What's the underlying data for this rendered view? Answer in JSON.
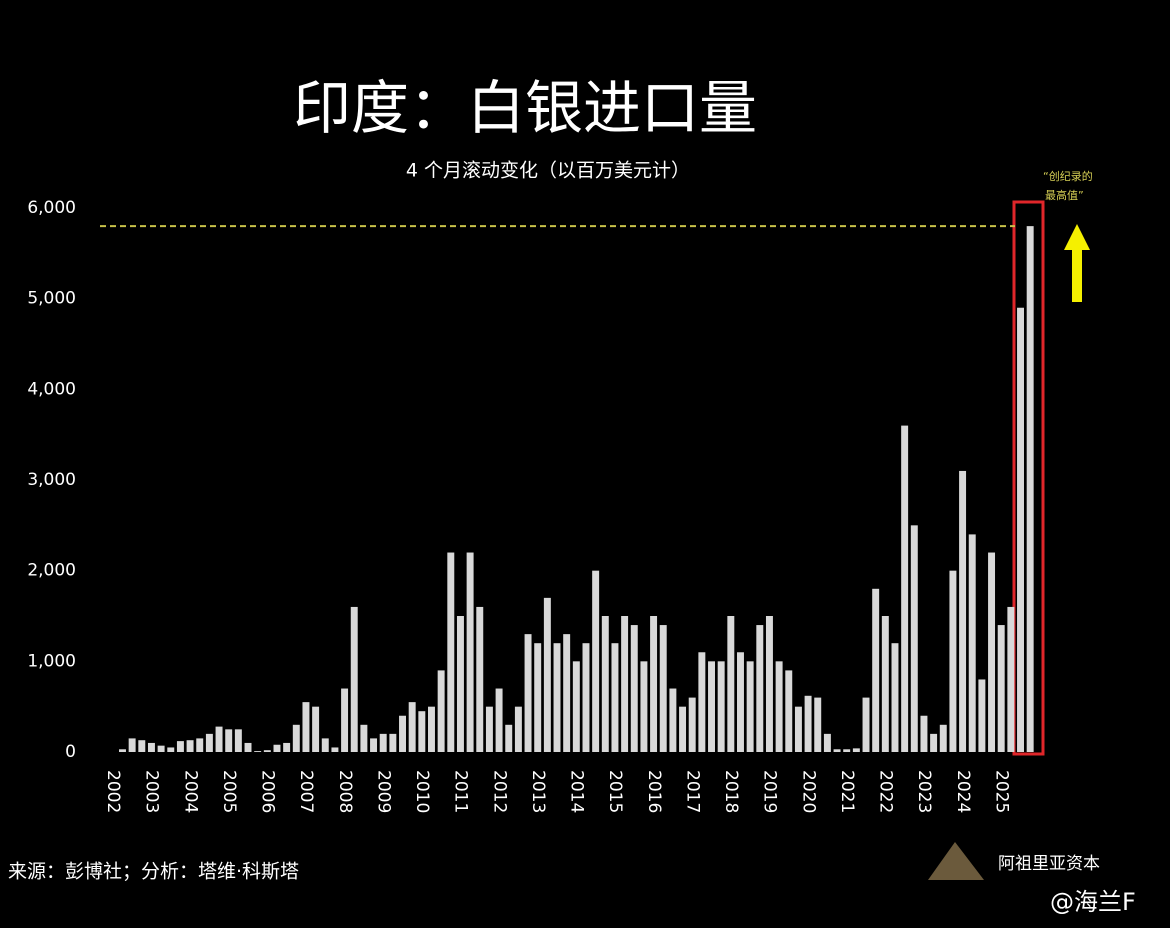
{
  "chart_data": {
    "type": "bar",
    "title": "印度：白银进口量",
    "subtitle": "4 个月滚动变化（以百万美元计）",
    "annotation": [
      "“创纪录的",
      "最高值”"
    ],
    "source": "来源：彭博社；分析：塔维·科斯塔",
    "brand": "阿祖里亚资本",
    "watermark": "@海兰F",
    "color": "#d9d9d9",
    "reference_line": 5800,
    "reference_color": "#c8c24a",
    "categories": [
      "2002",
      null,
      null,
      null,
      "2003",
      null,
      null,
      null,
      "2004",
      null,
      null,
      null,
      "2005",
      null,
      null,
      null,
      "2006",
      null,
      null,
      null,
      "2007",
      null,
      null,
      null,
      "2008",
      null,
      null,
      null,
      "2009",
      null,
      null,
      null,
      "2010",
      null,
      null,
      null,
      "2011",
      null,
      null,
      null,
      "2012",
      null,
      null,
      null,
      "2013",
      null,
      null,
      null,
      "2014",
      null,
      null,
      null,
      "2015",
      null,
      null,
      null,
      "2016",
      null,
      null,
      null,
      "2017",
      null,
      null,
      null,
      "2018",
      null,
      null,
      null,
      "2019",
      null,
      null,
      null,
      "2020",
      null,
      null,
      null,
      "2021",
      null,
      null,
      null,
      "2022",
      null,
      null,
      null,
      "2023",
      null,
      null,
      null,
      "2024",
      null,
      null,
      null,
      "2025",
      null,
      null,
      null
    ],
    "values": [
      0,
      30,
      150,
      130,
      100,
      70,
      50,
      120,
      130,
      150,
      200,
      280,
      250,
      250,
      100,
      10,
      20,
      80,
      100,
      300,
      550,
      500,
      150,
      50,
      700,
      1600,
      300,
      150,
      200,
      200,
      400,
      550,
      450,
      500,
      900,
      2200,
      1500,
      2200,
      1600,
      500,
      700,
      300,
      500,
      1300,
      1200,
      1700,
      1200,
      1300,
      1000,
      1200,
      2000,
      1500,
      1200,
      1500,
      1400,
      1000,
      1500,
      1400,
      700,
      500,
      600,
      1100,
      1000,
      1000,
      1500,
      1100,
      1000,
      1400,
      1500,
      1000,
      900,
      500,
      620,
      600,
      200,
      30,
      30,
      40,
      600,
      1800,
      1500,
      1200,
      3600,
      2500,
      400,
      200,
      300,
      2000,
      3100,
      2400,
      800,
      2200,
      1400,
      1600,
      4900,
      5800
    ],
    "ylim": [
      0,
      6000
    ],
    "yticks": [
      0,
      {
        "value": 1000,
        "label": "1,000"
      },
      {
        "value": 2000,
        "label": "2,000"
      },
      {
        "value": 3000,
        "label": "3,000"
      },
      {
        "value": 4000,
        "label": "4,000"
      },
      {
        "value": 5000,
        "label": "5,000"
      },
      {
        "value": 6000,
        "label": "6,000"
      }
    ]
  }
}
